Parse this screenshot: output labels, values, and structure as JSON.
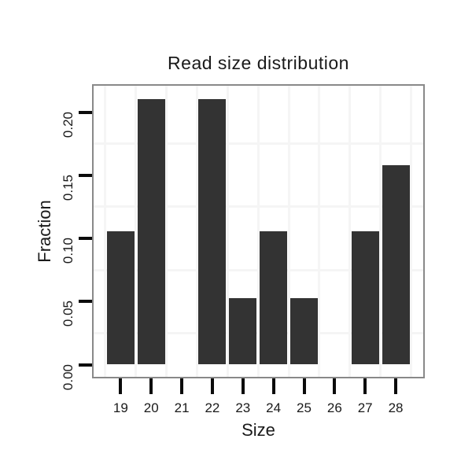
{
  "chart_data": {
    "type": "bar",
    "title": "Read size distribution",
    "xlabel": "Size",
    "ylabel": "Fraction",
    "categories": [
      "19",
      "20",
      "21",
      "22",
      "23",
      "24",
      "25",
      "26",
      "27",
      "28"
    ],
    "values": [
      0.1053,
      0.2105,
      0,
      0.2105,
      0.0526,
      0.1053,
      0.0526,
      0,
      0.1053,
      0.1579
    ],
    "yticks": [
      0.0,
      0.05,
      0.1,
      0.15,
      0.2
    ],
    "ytick_labels": [
      "0.00",
      "0.05",
      "0.10",
      "0.15",
      "0.20"
    ],
    "y_minor_gridlines": [
      0.025,
      0.075,
      0.125,
      0.175
    ],
    "ylim": [
      -0.011,
      0.222
    ],
    "grid": "minor-only",
    "legend": "none",
    "bar_color": "#333333",
    "panel_border_color": "#898989",
    "grid_color": "#f5f5f5",
    "tick_color": "#0b0b0b",
    "text_color": "#1a1a1a",
    "background_color": "#ffffff"
  }
}
